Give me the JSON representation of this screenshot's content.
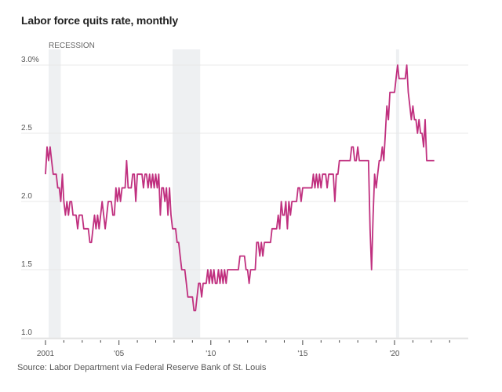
{
  "title": "Labor force quits rate, monthly",
  "source": "Source: Labor Department via Federal Reserve Bank of St. Louis",
  "chart_data": {
    "type": "line",
    "title": "Labor force quits rate, monthly",
    "xlabel": "",
    "ylabel": "",
    "ylim": [
      1.0,
      3.0
    ],
    "xlim": [
      2001,
      2024
    ],
    "y_ticks": [
      {
        "value": 3.0,
        "label": "3.0%"
      },
      {
        "value": 2.5,
        "label": "2.5"
      },
      {
        "value": 2.0,
        "label": "2.0"
      },
      {
        "value": 1.5,
        "label": "1.5"
      },
      {
        "value": 1.0,
        "label": "1.0"
      }
    ],
    "x_ticks": [
      {
        "value": 2001,
        "label": "2001"
      },
      {
        "value": 2005,
        "label": "'05"
      },
      {
        "value": 2010,
        "label": "'10"
      },
      {
        "value": 2015,
        "label": "'15"
      },
      {
        "value": 2020,
        "label": "'20"
      }
    ],
    "grid": true,
    "line_color": "#c0307f",
    "recession_label": "RECESSION",
    "recessions": [
      {
        "start": 2001.17,
        "end": 2001.83
      },
      {
        "start": 2007.92,
        "end": 2009.42
      },
      {
        "start": 2020.08,
        "end": 2020.25
      }
    ],
    "series": [
      {
        "name": "Quits rate (%)",
        "start": "2001-01",
        "frequency": "monthly",
        "values": [
          2.2,
          2.4,
          2.3,
          2.4,
          2.3,
          2.2,
          2.2,
          2.2,
          2.1,
          2.1,
          2.0,
          2.2,
          2.0,
          1.9,
          2.0,
          1.9,
          2.0,
          2.0,
          1.9,
          1.9,
          1.9,
          1.8,
          1.9,
          1.9,
          1.9,
          1.8,
          1.8,
          1.8,
          1.8,
          1.7,
          1.7,
          1.8,
          1.9,
          1.8,
          1.9,
          1.8,
          1.9,
          2.0,
          1.9,
          1.8,
          1.9,
          2.0,
          2.0,
          2.0,
          1.9,
          1.9,
          2.1,
          2.0,
          2.1,
          2.0,
          2.1,
          2.1,
          2.1,
          2.3,
          2.1,
          2.1,
          2.1,
          2.2,
          2.2,
          2.0,
          2.2,
          2.2,
          2.2,
          2.2,
          2.1,
          2.2,
          2.2,
          2.1,
          2.2,
          2.1,
          2.2,
          2.1,
          2.2,
          2.1,
          2.2,
          1.9,
          2.1,
          2.1,
          2.0,
          2.1,
          1.9,
          2.1,
          1.9,
          1.8,
          1.8,
          1.8,
          1.7,
          1.7,
          1.6,
          1.5,
          1.5,
          1.5,
          1.4,
          1.3,
          1.3,
          1.3,
          1.3,
          1.2,
          1.2,
          1.3,
          1.4,
          1.4,
          1.3,
          1.4,
          1.4,
          1.4,
          1.5,
          1.4,
          1.5,
          1.4,
          1.5,
          1.4,
          1.4,
          1.5,
          1.4,
          1.5,
          1.4,
          1.5,
          1.4,
          1.5,
          1.5,
          1.5,
          1.5,
          1.5,
          1.5,
          1.5,
          1.5,
          1.6,
          1.6,
          1.6,
          1.6,
          1.5,
          1.5,
          1.4,
          1.5,
          1.5,
          1.5,
          1.5,
          1.7,
          1.7,
          1.6,
          1.7,
          1.6,
          1.7,
          1.7,
          1.7,
          1.7,
          1.7,
          1.8,
          1.8,
          1.8,
          1.8,
          1.9,
          1.8,
          2.0,
          1.9,
          1.9,
          2.0,
          1.8,
          2.0,
          1.9,
          2.0,
          2.0,
          2.0,
          2.0,
          2.1,
          2.1,
          2.0,
          2.1,
          2.1,
          2.1,
          2.1,
          2.1,
          2.1,
          2.1,
          2.2,
          2.1,
          2.2,
          2.1,
          2.2,
          2.1,
          2.2,
          2.2,
          2.2,
          2.1,
          2.2,
          2.2,
          2.2,
          2.2,
          2.0,
          2.2,
          2.2,
          2.3,
          2.3,
          2.3,
          2.3,
          2.3,
          2.3,
          2.3,
          2.3,
          2.4,
          2.4,
          2.3,
          2.3,
          2.4,
          2.3,
          2.3,
          2.3,
          2.3,
          2.3,
          2.3,
          2.3,
          1.8,
          1.5,
          1.9,
          2.2,
          2.1,
          2.2,
          2.3,
          2.3,
          2.4,
          2.3,
          2.5,
          2.7,
          2.6,
          2.8,
          2.8,
          2.8,
          2.8,
          2.9,
          3.0,
          2.9,
          2.9,
          2.9,
          2.9,
          2.9,
          3.0,
          2.8,
          2.7,
          2.6,
          2.7,
          2.6,
          2.6,
          2.5,
          2.6,
          2.5,
          2.5,
          2.4,
          2.6,
          2.3,
          2.3,
          2.3,
          2.3,
          2.3,
          2.3
        ]
      }
    ]
  }
}
